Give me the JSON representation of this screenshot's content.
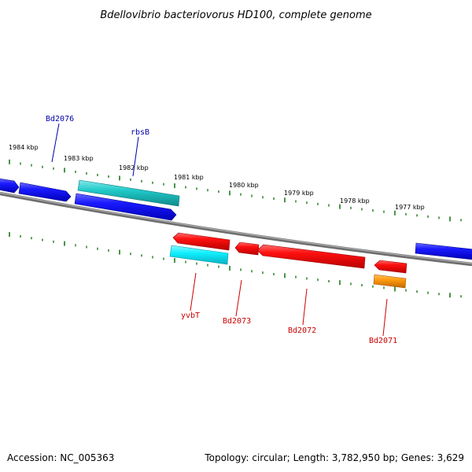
{
  "title": "Bdellovibrio bacteriovorus HD100, complete genome",
  "footer": {
    "accession": "Accession: NC_005363",
    "summary": "Topology: circular; Length: 3,782,950 bp; Genes: 3,629"
  },
  "kbp_labels": [
    "1984 kbp",
    "1983 kbp",
    "1982 kbp",
    "1981 kbp",
    "1980 kbp",
    "1979 kbp",
    "1978 kbp",
    "1977 kbp"
  ],
  "gene_labels": {
    "bd2076": "Bd2076",
    "rbsB": "rbsB",
    "yvbT": "yvbT",
    "bd2073": "Bd2073",
    "bd2072": "Bd2072",
    "bd2071": "Bd2071"
  },
  "colors": {
    "blue_gene": "#0a14e6",
    "cyan_gene": "#18c8c8",
    "cyan_bright": "#16e6f0",
    "red_gene": "#f00a0a",
    "orange_gene": "#f08c0a",
    "backbone": "#808080",
    "tick": "#1a7a1a",
    "label_blue": "#0000aa",
    "label_red": "#cc0000"
  }
}
